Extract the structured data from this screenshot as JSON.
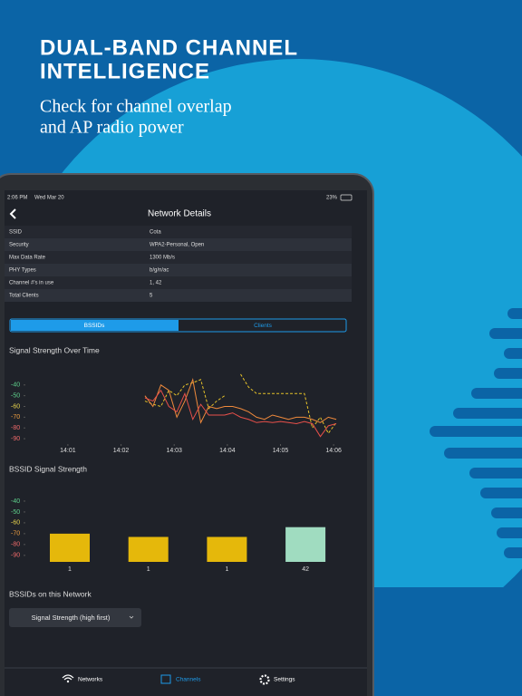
{
  "promo": {
    "title_lines": [
      "DUAL-BAND CHANNEL",
      "INTELLIGENCE"
    ],
    "subtitle_lines": [
      "Check for channel overlap",
      "and AP radio power"
    ]
  },
  "status": {
    "time": "2:06 PM",
    "date": "Wed Mar 20",
    "battery": "23%"
  },
  "nav": {
    "title": "Network Details"
  },
  "details": {
    "rows": [
      [
        "SSID",
        "Cota"
      ],
      [
        "Security",
        "WPA2-Personal, Open"
      ],
      [
        "Max Data Rate",
        "1300 Mb/s"
      ],
      [
        "PHY Types",
        "b/g/n/ac"
      ],
      [
        "Channel #'s in use",
        "1, 42"
      ],
      [
        "Total Clients",
        "5"
      ]
    ]
  },
  "tabs": [
    "BSSIDs",
    "Clients"
  ],
  "chart_data": [
    {
      "type": "line",
      "title": "Signal Strength Over Time",
      "x": [
        2.45,
        2.6,
        2.75,
        2.9,
        3.05,
        3.2,
        3.35,
        3.5,
        3.65,
        3.8,
        3.95,
        4.1,
        4.25,
        4.4,
        4.55,
        4.7,
        4.85,
        5.0,
        5.15,
        5.3,
        5.45,
        5.6,
        5.75,
        5.9,
        6.05
      ],
      "series": [
        {
          "color": "#e6c229",
          "dashed": true,
          "values": [
            -55,
            -58,
            -60,
            -45,
            -50,
            -40,
            -38,
            -35,
            -62,
            -55,
            -50,
            null,
            -30,
            -42,
            -48,
            -48,
            -48,
            -48,
            -48,
            -48,
            -48,
            -80,
            -70,
            -85,
            -75
          ]
        },
        {
          "color": "#f08a3c",
          "values": [
            -50,
            -60,
            -40,
            -45,
            -70,
            -55,
            -35,
            -75,
            -60,
            -62,
            -60,
            -60,
            -62,
            -65,
            -70,
            -72,
            -68,
            -70,
            -72,
            -70,
            -70,
            -72,
            -75,
            -70,
            -72
          ]
        },
        {
          "color": "#e8504a",
          "values": [
            -52,
            -55,
            -45,
            -60,
            -65,
            -48,
            -72,
            -58,
            -68,
            -68,
            -68,
            -66,
            -70,
            -72,
            -75,
            -74,
            -75,
            -74,
            -75,
            -76,
            -74,
            -76,
            -88,
            -78,
            -76
          ]
        }
      ],
      "xlim": [
        0.2,
        6.1
      ],
      "xticks": [
        {
          "value": 1,
          "label": "14:01"
        },
        {
          "value": 2,
          "label": "14:02"
        },
        {
          "value": 3,
          "label": "14:03"
        },
        {
          "value": 4,
          "label": "14:04"
        },
        {
          "value": 5,
          "label": "14:05"
        },
        {
          "value": 6,
          "label": "14:06"
        }
      ],
      "ylim": [
        -95,
        -25
      ],
      "yticks": [
        -40,
        -50,
        -60,
        -70,
        -80,
        -90
      ],
      "ytick_colors": [
        "#5fd38d",
        "#5fd38d",
        "#e8d44d",
        "#f0a040",
        "#f06a6a",
        "#f06a6a"
      ]
    },
    {
      "type": "bar",
      "title": "BSSID Signal Strength",
      "categories": [
        "1",
        "1",
        "1",
        "42"
      ],
      "values": [
        -70,
        -73,
        -73,
        -64
      ],
      "colors": [
        "#e5b80b",
        "#e5b80b",
        "#e5b80b",
        "#a0dcc0"
      ],
      "ylim": [
        -96,
        -25
      ],
      "yticks": [
        -40,
        -50,
        -60,
        -70,
        -80,
        -90
      ],
      "ytick_colors": [
        "#5fd38d",
        "#5fd38d",
        "#e8d44d",
        "#f0a040",
        "#f06a6a",
        "#f06a6a"
      ]
    }
  ],
  "section": {
    "title": "BSSIDs on this Network",
    "sort": "Signal Strength (high first)"
  },
  "tabbar": [
    "Networks",
    "Channels",
    "Settings"
  ]
}
